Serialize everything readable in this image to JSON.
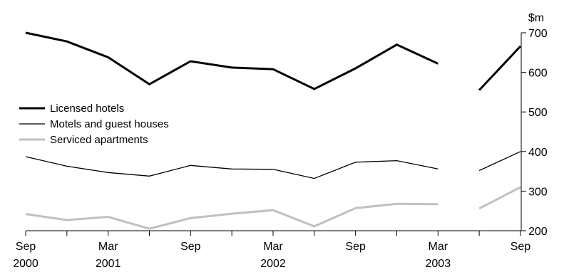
{
  "chart_data": {
    "type": "line",
    "title": "",
    "ylabel": "$m",
    "xlabel": "",
    "ylim": [
      200,
      700
    ],
    "y_ticks": [
      "200",
      "300",
      "400",
      "500",
      "600",
      "700"
    ],
    "y_axis_side": "right",
    "x_ticks": [
      {
        "index": 0,
        "line1": "Sep",
        "line2": "2000"
      },
      {
        "index": 2,
        "line1": "Mar",
        "line2": "2001"
      },
      {
        "index": 4,
        "line1": "Sep",
        "line2": ""
      },
      {
        "index": 6,
        "line1": "Mar",
        "line2": "2002"
      },
      {
        "index": 8,
        "line1": "Sep",
        "line2": ""
      },
      {
        "index": 10,
        "line1": "Mar",
        "line2": "2003"
      },
      {
        "index": 12,
        "line1": "Sep",
        "line2": ""
      }
    ],
    "x": [
      "Sep 2000",
      "Dec 2000",
      "Mar 2001",
      "Jun 2001",
      "Sep 2001",
      "Dec 2001",
      "Mar 2002",
      "Jun 2002",
      "Sep 2002",
      "Dec 2002",
      "Mar 2003",
      "Jun 2003",
      "Sep 2003"
    ],
    "series": [
      {
        "name": "Licensed hotels",
        "color": "#000000",
        "width": 3,
        "values": [
          700,
          678,
          638,
          570,
          628,
          612,
          608,
          558,
          610,
          670,
          622,
          555,
          666
        ]
      },
      {
        "name": "Motels and guest houses",
        "color": "#000000",
        "width": 1.3,
        "values": [
          387,
          363,
          347,
          338,
          365,
          356,
          355,
          332,
          373,
          377,
          356,
          352,
          400
        ]
      },
      {
        "name": "Serviced apartments",
        "color": "#c0c0c0",
        "width": 3,
        "values": [
          242,
          227,
          235,
          205,
          232,
          243,
          252,
          211,
          257,
          268,
          267,
          256,
          310
        ]
      }
    ],
    "gap_after_index": 10,
    "legend_position": "left-middle",
    "grid": false
  }
}
